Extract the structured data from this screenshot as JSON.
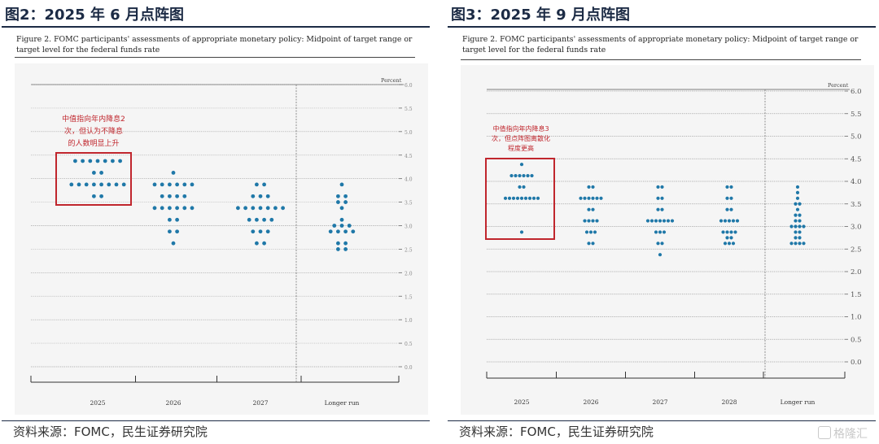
{
  "panels": [
    {
      "title": "图2：2025 年 6 月点阵图",
      "caption": "Figure 2.  FOMC participants' assessments of appropriate monetary policy:  Midpoint of target range or target level for the federal funds rate",
      "source": "资料来源：FOMC，民生证券研究院",
      "annotation_lines": [
        "中值指向年内降息2",
        "次，但认为不降息",
        "的人数明显上升"
      ],
      "box_color": "#c0262d"
    },
    {
      "title": "图3：2025 年 9 月点阵图",
      "caption": "Figure 2.  FOMC participants' assessments of appropriate monetary policy:  Midpoint of target range or target level for the federal funds rate",
      "source": "资料来源：FOMC，民生证券研究院",
      "annotation_lines": [
        "中值指向年内降息3",
        "次，但点阵图离散化",
        "程度更高"
      ],
      "box_color": "#c0262d",
      "watermark": "格隆汇"
    }
  ],
  "chart_data": [
    {
      "type": "scatter",
      "subtype": "dot-plot",
      "ylabel": "Percent",
      "ylim": [
        0.0,
        6.0
      ],
      "yticks": [
        "0.0",
        "0.5",
        "1.0",
        "1.5",
        "2.0",
        "2.5",
        "3.0",
        "3.5",
        "4.0",
        "4.5",
        "5.0",
        "5.5",
        "6.0"
      ],
      "categories": [
        "2025",
        "2026",
        "2027",
        "Longer run"
      ],
      "dot_color": "#1f78a8",
      "series": [
        {
          "category": "2025",
          "dots": [
            {
              "y": 4.375,
              "count": 7
            },
            {
              "y": 4.125,
              "count": 2
            },
            {
              "y": 3.875,
              "count": 8
            },
            {
              "y": 3.625,
              "count": 2
            }
          ]
        },
        {
          "category": "2026",
          "dots": [
            {
              "y": 4.125,
              "count": 1
            },
            {
              "y": 3.875,
              "count": 6
            },
            {
              "y": 3.625,
              "count": 4
            },
            {
              "y": 3.375,
              "count": 6
            },
            {
              "y": 3.125,
              "count": 2
            },
            {
              "y": 2.875,
              "count": 2
            },
            {
              "y": 2.625,
              "count": 1
            }
          ]
        },
        {
          "category": "2027",
          "dots": [
            {
              "y": 3.875,
              "count": 2
            },
            {
              "y": 3.625,
              "count": 3
            },
            {
              "y": 3.375,
              "count": 7
            },
            {
              "y": 3.125,
              "count": 4
            },
            {
              "y": 2.875,
              "count": 3
            },
            {
              "y": 2.625,
              "count": 2
            }
          ]
        },
        {
          "category": "Longer run",
          "dots": [
            {
              "y": 3.875,
              "count": 1
            },
            {
              "y": 3.625,
              "count": 2
            },
            {
              "y": 3.5,
              "count": 2
            },
            {
              "y": 3.375,
              "count": 1
            },
            {
              "y": 3.125,
              "count": 1
            },
            {
              "y": 3.0,
              "count": 3
            },
            {
              "y": 2.875,
              "count": 4
            },
            {
              "y": 2.625,
              "count": 2
            },
            {
              "y": 2.5,
              "count": 2
            }
          ]
        }
      ],
      "highlight_range": {
        "category": "2025",
        "y": [
          3.5,
          4.5
        ]
      }
    },
    {
      "type": "scatter",
      "subtype": "dot-plot",
      "ylabel": "Percent",
      "ylim": [
        0.0,
        6.0
      ],
      "yticks": [
        "0.0",
        "0.5",
        "1.0",
        "1.5",
        "2.0",
        "2.5",
        "3.0",
        "3.5",
        "4.0",
        "4.5",
        "5.0",
        "5.5",
        "6.0"
      ],
      "categories": [
        "2025",
        "2026",
        "2027",
        "2028",
        "Longer run"
      ],
      "dot_color": "#1f78a8",
      "series": [
        {
          "category": "2025",
          "dots": [
            {
              "y": 4.375,
              "count": 1
            },
            {
              "y": 4.125,
              "count": 6
            },
            {
              "y": 3.875,
              "count": 2
            },
            {
              "y": 3.625,
              "count": 9
            },
            {
              "y": 2.875,
              "count": 1
            }
          ]
        },
        {
          "category": "2026",
          "dots": [
            {
              "y": 3.875,
              "count": 2
            },
            {
              "y": 3.625,
              "count": 6
            },
            {
              "y": 3.375,
              "count": 2
            },
            {
              "y": 3.125,
              "count": 4
            },
            {
              "y": 2.875,
              "count": 3
            },
            {
              "y": 2.625,
              "count": 2
            }
          ]
        },
        {
          "category": "2027",
          "dots": [
            {
              "y": 3.875,
              "count": 2
            },
            {
              "y": 3.625,
              "count": 2
            },
            {
              "y": 3.375,
              "count": 2
            },
            {
              "y": 3.125,
              "count": 7
            },
            {
              "y": 2.875,
              "count": 3
            },
            {
              "y": 2.625,
              "count": 2
            },
            {
              "y": 2.375,
              "count": 1
            }
          ]
        },
        {
          "category": "2028",
          "dots": [
            {
              "y": 3.875,
              "count": 2
            },
            {
              "y": 3.625,
              "count": 2
            },
            {
              "y": 3.375,
              "count": 2
            },
            {
              "y": 3.125,
              "count": 5
            },
            {
              "y": 2.875,
              "count": 4
            },
            {
              "y": 2.75,
              "count": 2
            },
            {
              "y": 2.625,
              "count": 3
            }
          ]
        },
        {
          "category": "Longer run",
          "dots": [
            {
              "y": 3.875,
              "count": 1
            },
            {
              "y": 3.75,
              "count": 1
            },
            {
              "y": 3.625,
              "count": 1
            },
            {
              "y": 3.5,
              "count": 2
            },
            {
              "y": 3.375,
              "count": 1
            },
            {
              "y": 3.25,
              "count": 2
            },
            {
              "y": 3.125,
              "count": 2
            },
            {
              "y": 3.0,
              "count": 4
            },
            {
              "y": 2.875,
              "count": 2
            },
            {
              "y": 2.75,
              "count": 2
            },
            {
              "y": 2.625,
              "count": 4
            }
          ]
        }
      ],
      "highlight_range": {
        "category": "2025",
        "y": [
          2.75,
          4.6
        ]
      }
    }
  ]
}
